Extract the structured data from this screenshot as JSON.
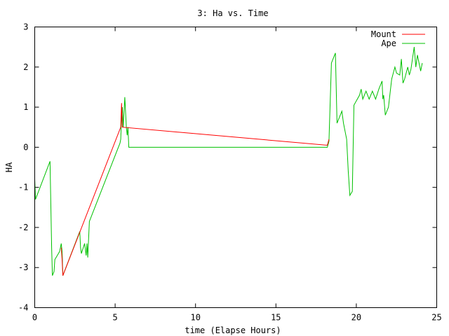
{
  "chart_data": {
    "type": "line",
    "title": "3: Ha vs. Time",
    "xlabel": "time (Elapse Hours)",
    "ylabel": "HA",
    "xlim": [
      0,
      25
    ],
    "ylim": [
      -4,
      3
    ],
    "xticks": [
      "0",
      "5",
      "10",
      "15",
      "20",
      "25"
    ],
    "yticks": [
      "-4",
      "-3",
      "-2",
      "-1",
      "0",
      "1",
      "2",
      "3"
    ],
    "grid": false,
    "legend_position": "top-right",
    "series": [
      {
        "name": "Mount",
        "color": "#ff0000",
        "points": [
          [
            1.65,
            -2.5
          ],
          [
            1.7,
            -2.8
          ],
          [
            1.75,
            -3.2
          ],
          [
            5.35,
            0.5
          ],
          [
            5.4,
            1.1
          ],
          [
            5.45,
            0.5
          ],
          [
            18.2,
            0.05
          ],
          [
            18.3,
            0.2
          ]
        ]
      },
      {
        "name": "Ape",
        "color": "#00c000",
        "points": [
          [
            0.0,
            -0.8
          ],
          [
            0.05,
            -1.3
          ],
          [
            0.95,
            -0.35
          ],
          [
            1.05,
            -2.5
          ],
          [
            1.1,
            -3.2
          ],
          [
            1.2,
            -3.1
          ],
          [
            1.25,
            -2.8
          ],
          [
            1.55,
            -2.6
          ],
          [
            1.65,
            -2.4
          ],
          [
            1.7,
            -2.6
          ],
          [
            1.75,
            -3.2
          ],
          [
            2.8,
            -2.1
          ],
          [
            2.85,
            -2.5
          ],
          [
            2.9,
            -2.65
          ],
          [
            3.1,
            -2.4
          ],
          [
            3.2,
            -2.7
          ],
          [
            3.25,
            -2.4
          ],
          [
            3.3,
            -2.75
          ],
          [
            3.4,
            -1.85
          ],
          [
            5.2,
            0.0
          ],
          [
            5.3,
            0.1
          ],
          [
            5.35,
            0.2
          ],
          [
            5.4,
            0.8
          ],
          [
            5.45,
            1.0
          ],
          [
            5.5,
            0.5
          ],
          [
            5.6,
            1.25
          ],
          [
            5.7,
            0.5
          ],
          [
            5.75,
            0.3
          ],
          [
            5.8,
            0.5
          ],
          [
            5.85,
            0.0
          ],
          [
            18.2,
            0.0
          ],
          [
            18.3,
            0.15
          ],
          [
            18.45,
            2.1
          ],
          [
            18.7,
            2.35
          ],
          [
            18.8,
            0.6
          ],
          [
            19.1,
            0.9
          ],
          [
            19.2,
            0.6
          ],
          [
            19.4,
            0.2
          ],
          [
            19.5,
            -0.6
          ],
          [
            19.6,
            -1.2
          ],
          [
            19.75,
            -1.1
          ],
          [
            19.85,
            1.05
          ],
          [
            20.2,
            1.3
          ],
          [
            20.3,
            1.45
          ],
          [
            20.4,
            1.2
          ],
          [
            20.6,
            1.4
          ],
          [
            20.8,
            1.2
          ],
          [
            21.0,
            1.4
          ],
          [
            21.2,
            1.2
          ],
          [
            21.4,
            1.45
          ],
          [
            21.6,
            1.65
          ],
          [
            21.65,
            1.2
          ],
          [
            21.7,
            1.3
          ],
          [
            21.8,
            0.8
          ],
          [
            22.0,
            1.0
          ],
          [
            22.2,
            1.7
          ],
          [
            22.4,
            2.0
          ],
          [
            22.5,
            1.85
          ],
          [
            22.7,
            1.8
          ],
          [
            22.8,
            2.2
          ],
          [
            22.9,
            1.6
          ],
          [
            23.0,
            1.7
          ],
          [
            23.2,
            2.0
          ],
          [
            23.3,
            1.8
          ],
          [
            23.4,
            1.95
          ],
          [
            23.6,
            2.5
          ],
          [
            23.7,
            2.0
          ],
          [
            23.8,
            2.3
          ],
          [
            24.0,
            1.9
          ],
          [
            24.1,
            2.1
          ]
        ]
      }
    ]
  }
}
